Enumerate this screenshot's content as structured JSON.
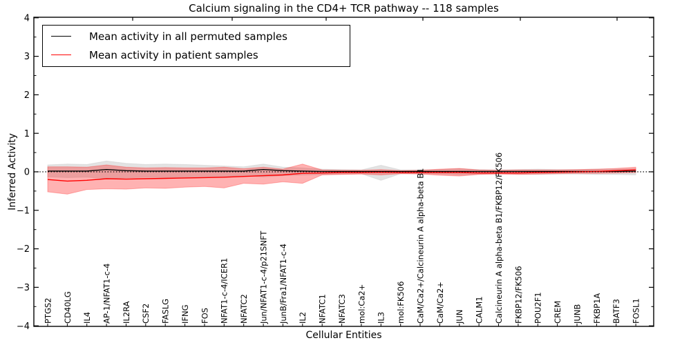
{
  "figure": {
    "title": "Calcium signaling in the CD4+ TCR pathway -- 118 samples",
    "xlabel": "Cellular Entities",
    "ylabel": "Inferred Activity",
    "legend": [
      {
        "label": "Mean activity in all permuted samples",
        "color": "#000000"
      },
      {
        "label": "Mean activity in patient samples",
        "color": "#ff0000"
      }
    ]
  },
  "chart_data": {
    "type": "line",
    "title": "Calcium signaling in the CD4+ TCR pathway -- 118 samples",
    "xlabel": "Cellular Entities",
    "ylabel": "Inferred Activity",
    "ylim": [
      -4,
      4
    ],
    "y_major_ticks": [
      -4,
      -3,
      -2,
      -1,
      0,
      1,
      2,
      3,
      4
    ],
    "y_minor_step": 0.5,
    "grid": false,
    "legend_position": "upper left",
    "zero_line": {
      "style": "dotted",
      "color": "#000000",
      "y": 0
    },
    "categories": [
      "PTGS2",
      "CD40LG",
      "IL4",
      "AP-1/NFAT1-c-4",
      "IL2RA",
      "CSF2",
      "FASLG",
      "IFNG",
      "FOS",
      "NFAT1-c-4/ICER1",
      "NFATC2",
      "Jun/NFAT1-c-4/p21SNFT",
      "JunB/Fra1/NFAT1-c-4",
      "IL2",
      "NFATC1",
      "NFATC3",
      "mol:Ca2+",
      "IL3",
      "mol:FK506",
      "CaM/Ca2+/Calcineurin A alpha-beta B1",
      "CaM/Ca2+",
      "JUN",
      "CALM1",
      "Calcineurin A alpha-beta B1/FKBP12/FK506",
      "FKBP12/FK506",
      "POU2F1",
      "CREM",
      "JUNB",
      "FKBP1A",
      "BATF3",
      "FOSL1"
    ],
    "series": [
      {
        "name": "Mean activity in all permuted samples",
        "color": "#000000",
        "values": [
          0.02,
          0.02,
          0.02,
          0.06,
          0.03,
          0.02,
          0.02,
          0.02,
          0.02,
          0.02,
          0.02,
          0.06,
          0.03,
          0.02,
          0.01,
          0.01,
          0.01,
          0.01,
          0.01,
          0.01,
          0.01,
          0.01,
          0.01,
          0.01,
          0.01,
          0.01,
          0.01,
          0.01,
          0.01,
          0.01,
          0.02
        ]
      },
      {
        "name": "Mean activity in patient samples",
        "color": "#ff0000",
        "values": [
          -0.2,
          -0.24,
          -0.22,
          -0.18,
          -0.19,
          -0.18,
          -0.17,
          -0.16,
          -0.15,
          -0.14,
          -0.12,
          -0.1,
          -0.08,
          -0.04,
          -0.03,
          -0.02,
          -0.02,
          -0.01,
          -0.02,
          -0.02,
          -0.02,
          -0.02,
          -0.03,
          -0.03,
          -0.03,
          -0.02,
          -0.01,
          0.0,
          0.01,
          0.03,
          0.05
        ]
      }
    ],
    "bands": [
      {
        "name": "permuted-range",
        "color": "#c8c8c8",
        "fill_opacity": 0.5,
        "upper": [
          0.18,
          0.2,
          0.19,
          0.28,
          0.22,
          0.19,
          0.2,
          0.19,
          0.17,
          0.15,
          0.13,
          0.2,
          0.12,
          0.1,
          0.07,
          0.06,
          0.05,
          0.17,
          0.05,
          0.05,
          0.06,
          0.08,
          0.06,
          0.05,
          0.06,
          0.07,
          0.06,
          0.06,
          0.07,
          0.07,
          0.08
        ],
        "lower": [
          -0.13,
          -0.15,
          -0.14,
          -0.18,
          -0.16,
          -0.14,
          -0.15,
          -0.14,
          -0.13,
          -0.12,
          -0.1,
          -0.13,
          -0.1,
          -0.08,
          -0.07,
          -0.06,
          -0.05,
          -0.22,
          -0.05,
          -0.05,
          -0.06,
          -0.08,
          -0.06,
          -0.05,
          -0.06,
          -0.07,
          -0.06,
          -0.06,
          -0.07,
          -0.07,
          -0.08
        ]
      },
      {
        "name": "patient-range",
        "color": "#ff0000",
        "fill_opacity": 0.3,
        "upper": [
          0.13,
          0.13,
          0.12,
          0.18,
          0.12,
          0.1,
          0.11,
          0.1,
          0.1,
          0.12,
          0.08,
          0.12,
          0.07,
          0.2,
          0.05,
          0.04,
          0.04,
          0.06,
          0.03,
          0.04,
          0.07,
          0.09,
          0.05,
          0.04,
          0.05,
          0.05,
          0.05,
          0.06,
          0.07,
          0.09,
          0.12
        ],
        "lower": [
          -0.52,
          -0.58,
          -0.46,
          -0.44,
          -0.45,
          -0.42,
          -0.43,
          -0.4,
          -0.38,
          -0.42,
          -0.3,
          -0.32,
          -0.26,
          -0.3,
          -0.08,
          -0.07,
          -0.06,
          -0.08,
          -0.05,
          -0.06,
          -0.09,
          -0.11,
          -0.07,
          -0.06,
          -0.07,
          -0.06,
          -0.05,
          -0.04,
          -0.04,
          -0.03,
          -0.02
        ]
      }
    ]
  }
}
